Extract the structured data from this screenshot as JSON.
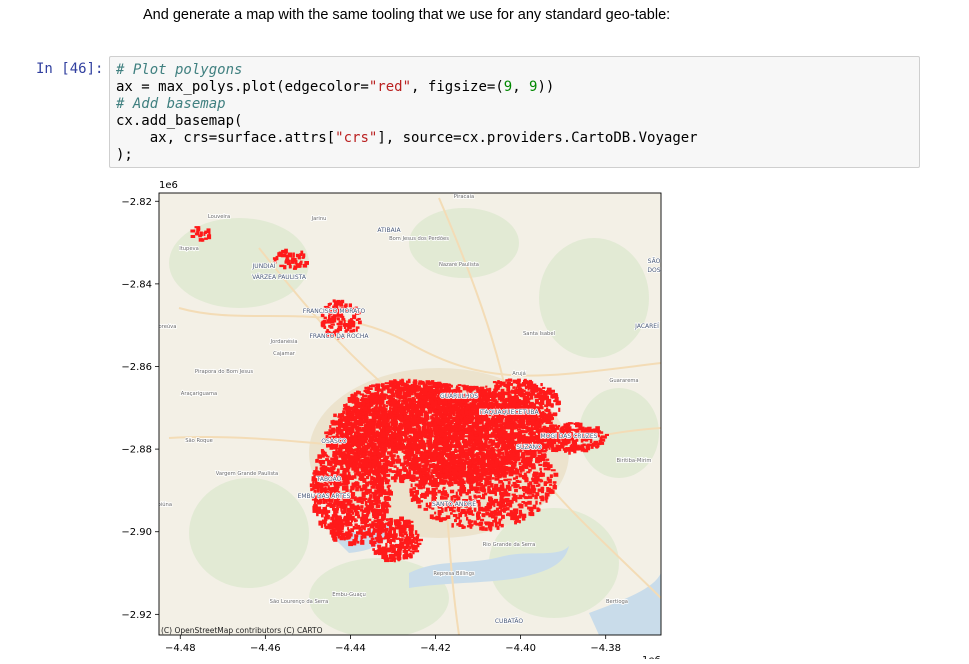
{
  "markdown": {
    "text": "And generate a map with the same tooling that we use for any standard geo-table:"
  },
  "cell": {
    "prompt": "In [46]:",
    "lines": {
      "l1": "# Plot polygons",
      "l2_a": "ax = max_polys.plot(edgecolor=",
      "l2_s": "\"red\"",
      "l2_b": ", figsize=(",
      "l2_n1": "9",
      "l2_c": ", ",
      "l2_n2": "9",
      "l2_d": "))",
      "l3": "# Add basemap",
      "l4": "cx.add_basemap(",
      "l5_a": "    ax, crs=surface.attrs[",
      "l5_s": "\"crs\"",
      "l5_b": "], source=cx.providers.CartoDB.Voyager",
      "l6": ");"
    }
  },
  "figure": {
    "attribution": "(C) OpenStreetMap contributors (C) CARTO",
    "place_labels": [
      "Louveira",
      "Jarinu",
      "Piracaia",
      "Itupeva",
      "ATIBAIA",
      "Bom Jesus dos Perdões",
      "Nazaré Paulista",
      "JUNDIAÍ",
      "VÁRZEA PAULISTA",
      "SÃO",
      "DOS",
      "FRANCISCO MORATO",
      "FRANCO DA ROCHA",
      "Cabreúva",
      "Jordanésia",
      "Cajamar",
      "Santa Isabel",
      "JACAREÍ",
      "Pirapora do Bom Jesus",
      "Arujá",
      "Araçariguama",
      "Guararema",
      "GUARULHOS",
      "ITAQUAQUECETUBA",
      "São Roque",
      "OSASCO",
      "MOGI DAS CRUZES",
      "SUZANO",
      "Biritiba-Mirim",
      "Vargem Grande Paulista",
      "TABOÃO",
      "EMBU DAS ARTES",
      "SANTO ANDRÉ",
      "Ibiúna",
      "Rio Grande da Serra",
      "Represa Billings",
      "Embu-Guaçu",
      "São Lourenço da Serra",
      "Bertioga",
      "CUBATÃO"
    ],
    "colors": {
      "polygon": "#ff1a1a",
      "map_background": "#f3f0e6",
      "water": "#c9dcea",
      "green": "#dde9cf",
      "urban": "#ece3cd"
    }
  },
  "chart_data": {
    "type": "map",
    "polygon_color": "red",
    "basemap": "CartoDB.Voyager",
    "x_offset_label": "1e6",
    "y_offset_label": "1e6",
    "xlim": [
      -4.485,
      -4.367
    ],
    "ylim": [
      -2.925,
      -2.818
    ],
    "xticks": [
      -4.48,
      -4.46,
      -4.44,
      -4.42,
      -4.4,
      -4.38
    ],
    "xtick_labels": [
      "−4.48",
      "−4.46",
      "−4.44",
      "−4.42",
      "−4.40",
      "−4.38"
    ],
    "yticks": [
      -2.82,
      -2.84,
      -2.86,
      -2.88,
      -2.9,
      -2.92
    ],
    "ytick_labels": [
      "−2.82",
      "−2.84",
      "−2.86",
      "−2.88",
      "−2.90",
      "−2.92"
    ]
  }
}
